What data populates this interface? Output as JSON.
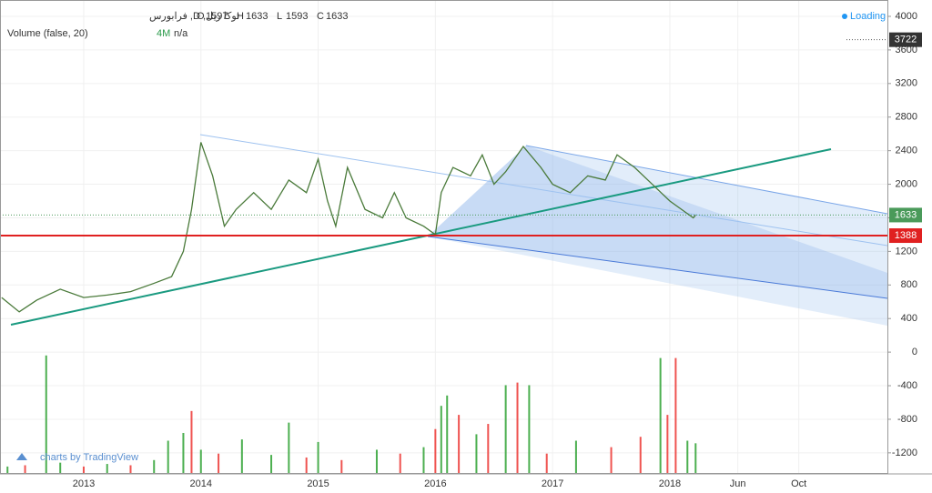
{
  "header": {
    "symbol": "توکا ریل, D, فرابورس",
    "ohlc": [
      {
        "label": "O",
        "value": 1597
      },
      {
        "label": "H",
        "value": 1633
      },
      {
        "label": "L",
        "value": 1593
      },
      {
        "label": "C",
        "value": 1633
      }
    ],
    "volume_title": "Volume (false, 20)",
    "volume_value": "4M",
    "volume_na": "n/a",
    "status": "Loading",
    "watermark": "charts by TradingView"
  },
  "chart_data": {
    "type": "line",
    "color": "#4a7a3a",
    "x": [
      2012.3,
      2012.45,
      2012.6,
      2012.8,
      2013.0,
      2013.2,
      2013.4,
      2013.6,
      2013.75,
      2013.85,
      2013.92,
      2014.0,
      2014.1,
      2014.2,
      2014.3,
      2014.45,
      2014.6,
      2014.75,
      2014.9,
      2015.0,
      2015.08,
      2015.15,
      2015.25,
      2015.4,
      2015.55,
      2015.65,
      2015.75,
      2015.9,
      2016.0,
      2016.05,
      2016.15,
      2016.3,
      2016.4,
      2016.5,
      2016.6,
      2016.75,
      2016.9,
      2017.0,
      2017.15,
      2017.3,
      2017.45,
      2017.55,
      2017.7,
      2017.85,
      2018.0,
      2018.1,
      2018.2,
      2018.22
    ],
    "values": [
      650,
      480,
      620,
      750,
      650,
      680,
      720,
      820,
      900,
      1200,
      1700,
      2500,
      2100,
      1500,
      1700,
      1900,
      1700,
      2050,
      1900,
      2300,
      1800,
      1500,
      2200,
      1700,
      1600,
      1900,
      1600,
      1500,
      1400,
      1900,
      2200,
      2100,
      2350,
      2000,
      2150,
      2450,
      2200,
      2000,
      1900,
      2100,
      2050,
      2350,
      2200,
      2000,
      1800,
      1700,
      1600,
      1633
    ],
    "xlim": [
      2012.286,
      2019.856
    ],
    "ylim": [
      -1440,
      4195
    ],
    "xticks": [
      {
        "value": 2013,
        "label": "2013"
      },
      {
        "value": 2014,
        "label": "2014"
      },
      {
        "value": 2015,
        "label": "2015"
      },
      {
        "value": 2016,
        "label": "2016"
      },
      {
        "value": 2017,
        "label": "2017"
      },
      {
        "value": 2018,
        "label": "2018"
      },
      {
        "value": 2018.58,
        "label": "Jun"
      },
      {
        "value": 2019.1,
        "label": "Oct"
      }
    ],
    "yticks": [
      4000,
      3600,
      3200,
      2800,
      2400,
      2000,
      1600,
      1200,
      800,
      400,
      0,
      -400,
      -800,
      -1200
    ],
    "price_labels": [
      {
        "value": 3722,
        "color": "#333333"
      },
      {
        "value": 1633,
        "color": "#4a9a5a"
      },
      {
        "value": 1388,
        "color": "#e02020"
      }
    ],
    "volume": {
      "axis": "y2",
      "x": [
        2012.35,
        2012.5,
        2012.68,
        2012.8,
        2013.0,
        2013.2,
        2013.4,
        2013.6,
        2013.72,
        2013.85,
        2013.92,
        2014.0,
        2014.15,
        2014.35,
        2014.6,
        2014.75,
        2014.9,
        2015.0,
        2015.2,
        2015.5,
        2015.7,
        2015.9,
        2016.0,
        2016.05,
        2016.1,
        2016.2,
        2016.35,
        2016.45,
        2016.6,
        2016.7,
        2016.8,
        2016.95,
        2017.2,
        2017.5,
        2017.75,
        2017.92,
        2017.98,
        2018.05,
        2018.15,
        2018.22
      ],
      "values": [
        0.5,
        0.6,
        9.1,
        0.8,
        0.5,
        0.7,
        0.6,
        1.0,
        2.5,
        3.1,
        4.8,
        1.8,
        1.5,
        2.6,
        1.4,
        3.9,
        1.2,
        2.4,
        1.0,
        1.8,
        1.5,
        2.0,
        3.4,
        5.2,
        6.0,
        4.5,
        3.0,
        3.8,
        6.8,
        7.0,
        6.8,
        1.5,
        2.5,
        2.0,
        2.8,
        8.9,
        4.5,
        8.9,
        2.5,
        2.3
      ],
      "colors": [
        "#4caf50",
        "#ef5350",
        "#4caf50",
        "#4caf50",
        "#ef5350",
        "#4caf50",
        "#ef5350",
        "#4caf50",
        "#4caf50",
        "#4caf50",
        "#ef5350",
        "#4caf50",
        "#ef5350",
        "#4caf50",
        "#4caf50",
        "#4caf50",
        "#ef5350",
        "#4caf50",
        "#ef5350",
        "#4caf50",
        "#ef5350",
        "#4caf50",
        "#ef5350",
        "#4caf50",
        "#4caf50",
        "#ef5350",
        "#4caf50",
        "#ef5350",
        "#4caf50",
        "#ef5350",
        "#4caf50",
        "#ef5350",
        "#4caf50",
        "#ef5350",
        "#ef5350",
        "#4caf50",
        "#ef5350",
        "#ef5350",
        "#4caf50",
        "#4caf50"
      ]
    },
    "y2lim": [
      0,
      10
    ],
    "grid": true
  }
}
